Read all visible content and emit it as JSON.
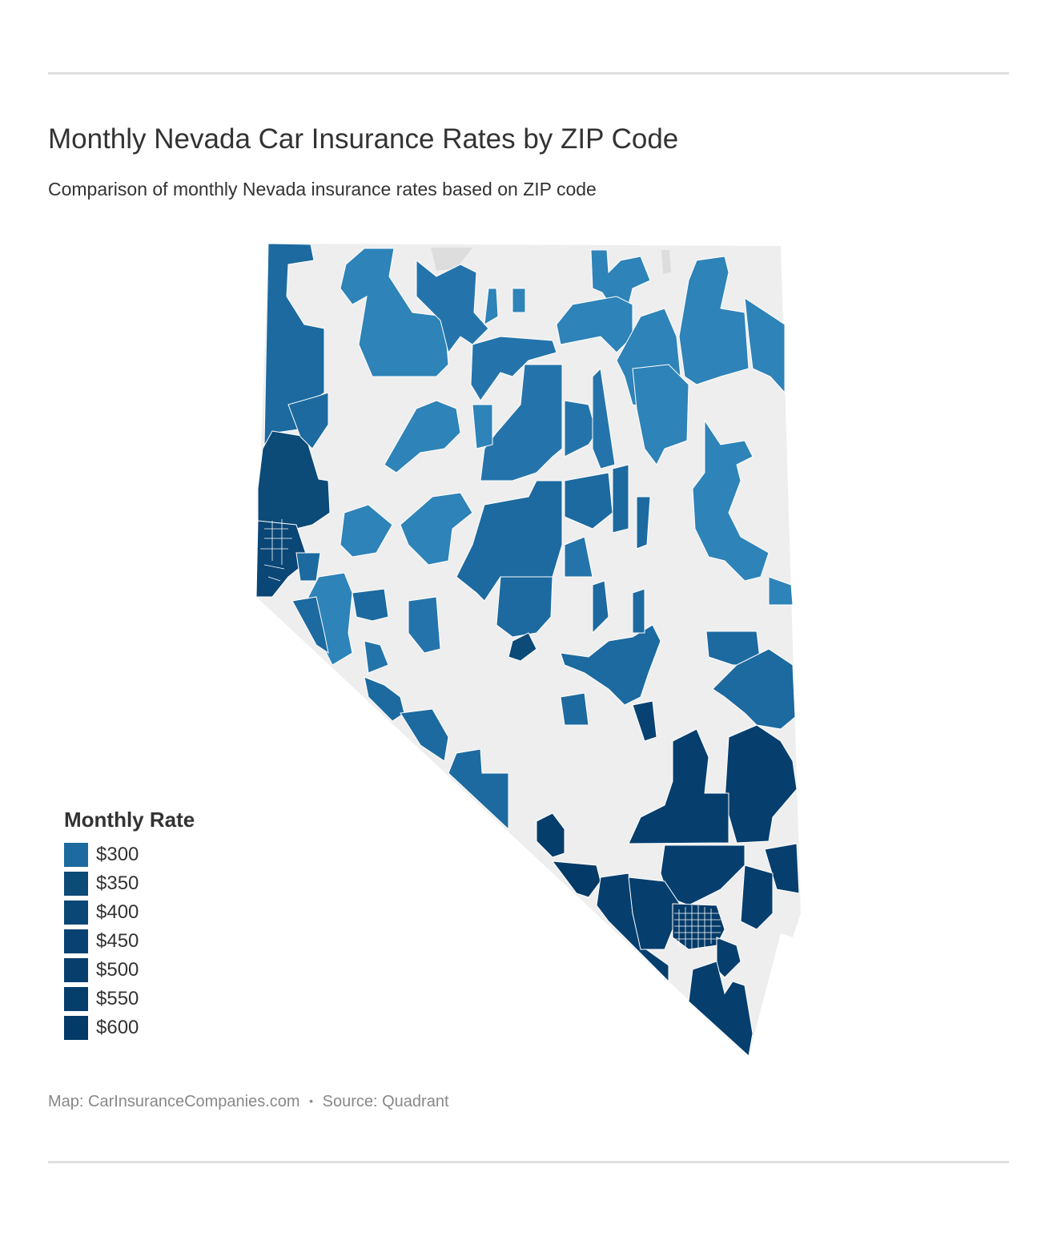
{
  "title": "Monthly Nevada Car Insurance Rates by ZIP Code",
  "subtitle": "Comparison of monthly Nevada insurance rates based on ZIP code",
  "legend": {
    "title": "Monthly Rate",
    "items": [
      {
        "label": "$300",
        "color": "#1c6aa0"
      },
      {
        "label": "$350",
        "color": "#0c4a78"
      },
      {
        "label": "$400",
        "color": "#0a4676"
      },
      {
        "label": "$450",
        "color": "#084272"
      },
      {
        "label": "$500",
        "color": "#063f6e"
      },
      {
        "label": "$550",
        "color": "#053d6b"
      },
      {
        "label": "$600",
        "color": "#043a68"
      }
    ]
  },
  "map": {
    "state": "Nevada",
    "colors": {
      "no_data": "#eeeeee",
      "out_of_state": "#dddddd",
      "north_light": "#2e83b8",
      "north_mid": "#2474ab",
      "west_dark": "#0f5184",
      "south_dark": "#063f6e",
      "border": "#ffffff"
    }
  },
  "footer": {
    "map_credit": "Map: CarInsuranceCompanies.com",
    "separator": "•",
    "source": "Source: Quadrant"
  }
}
